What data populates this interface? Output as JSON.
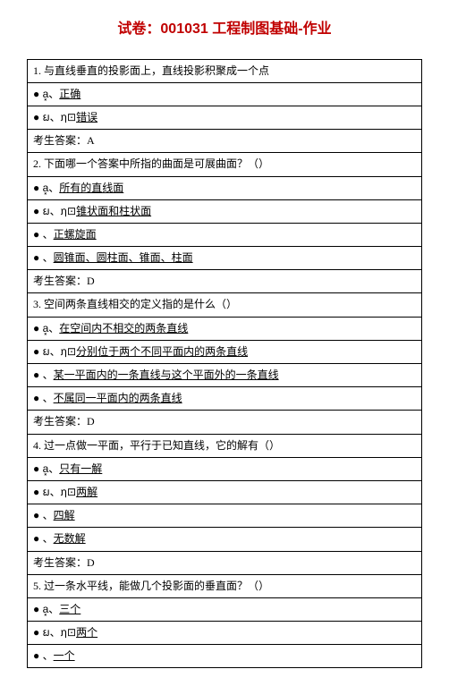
{
  "title": "试卷：001031 工程制图基础-作业",
  "questions": [
    {
      "num": "1",
      "stem": ". 与直线垂直的投影面上，直线投影积聚成一个点",
      "options": [
        {
          "label": "a͓、",
          "icon": "໛⊡",
          "text": "正确"
        },
        {
          "label": "ຏ、",
          "icon": "ຐ⊡",
          "text": "错误"
        }
      ],
      "answer_label": "考生答案：",
      "answer": "A"
    },
    {
      "num": "2",
      "stem": ". 下面哪一个答案中所指的曲面是可展曲面？（）",
      "options": [
        {
          "label": "a͓、",
          "icon": "໛⊡",
          "text": "所有的直线面"
        },
        {
          "label": "ຏ、",
          "icon": "ຐ⊡",
          "text": "锥状面和柱状面"
        },
        {
          "label": "຅、",
          "icon": "຅⊡",
          "text": "正螺旋面"
        },
        {
          "label": "໾、",
          "icon": "໾⊡",
          "text": "圆锥面、圆柱面、锥面、柱面"
        }
      ],
      "answer_label": "考生答案：",
      "answer": "D"
    },
    {
      "num": "3",
      "stem": ". 空间两条直线相交的定义指的是什么（）",
      "options": [
        {
          "label": "a͓、",
          "icon": "໛⊡",
          "text": "在空间内不相交的两条直线"
        },
        {
          "label": "ຏ、",
          "icon": "ຐ⊡",
          "text": "分别位于两个不同平面内的两条直线"
        },
        {
          "label": "຅、",
          "icon": "຅⊡",
          "text": "某一平面内的一条直线与这个平面外的一条直线"
        },
        {
          "label": "໾、",
          "icon": "໾⊡",
          "text": "不属同一平面内的两条直线"
        }
      ],
      "answer_label": "考生答案：",
      "answer": "D"
    },
    {
      "num": "4",
      "stem": ". 过一点做一平面，平行于已知直线，它的解有（）",
      "options": [
        {
          "label": "a͓、",
          "icon": "໛⊡",
          "text": "只有一解"
        },
        {
          "label": "ຏ、",
          "icon": "ຐ⊡",
          "text": "两解"
        },
        {
          "label": "຅、",
          "icon": "຅⊡",
          "text": "四解"
        },
        {
          "label": "໾、",
          "icon": "໾⊡",
          "text": "无数解"
        }
      ],
      "answer_label": "考生答案：",
      "answer": "D"
    },
    {
      "num": "5",
      "stem": ". 过一条水平线，能做几个投影面的垂直面？（）",
      "options": [
        {
          "label": "a͓、",
          "icon": "໛⊡",
          "text": "三个"
        },
        {
          "label": "ຏ、",
          "icon": "ຐ⊡",
          "text": "两个"
        },
        {
          "label": "຅、",
          "icon": "຅⊡",
          "text": "一个"
        }
      ],
      "answer_label": null,
      "answer": null
    }
  ]
}
